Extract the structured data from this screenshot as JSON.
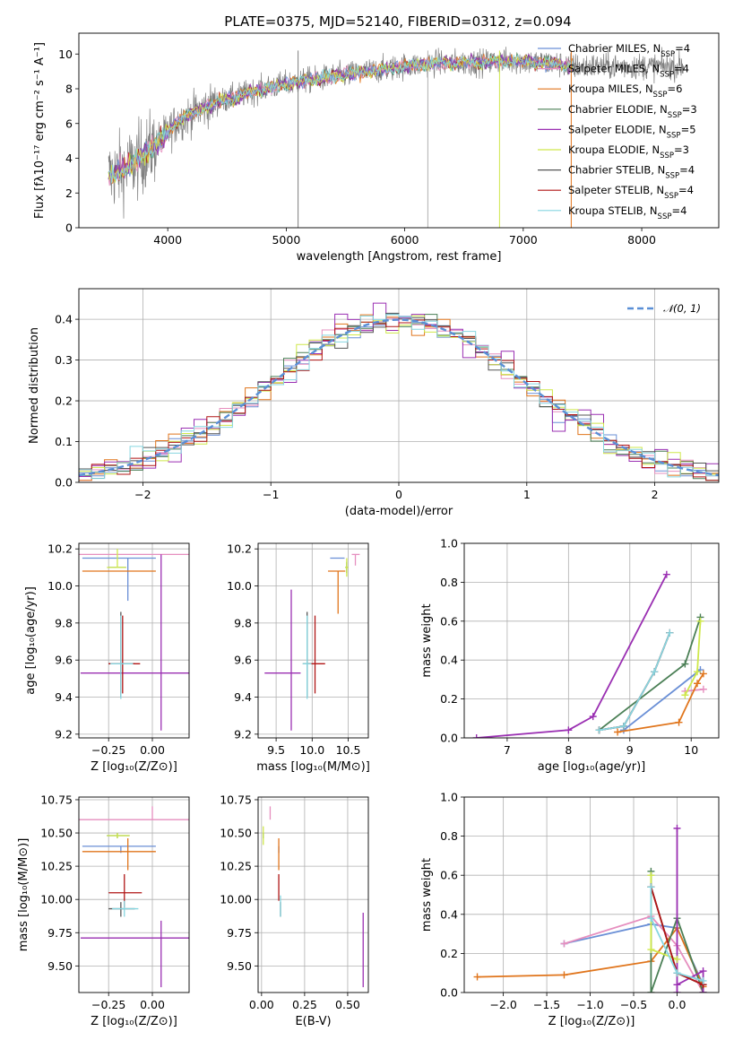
{
  "title": "PLATE=0375, MJD=52140, FIBERID=0312, z=0.094",
  "colors": {
    "Chabrier_MILES": "#6a8fd6",
    "Salpeter_MILES": "#e68fbf",
    "Kroupa_MILES": "#e0751c",
    "Chabrier_ELODIE": "#4a7f55",
    "Salpeter_ELODIE": "#9a2fb2",
    "Kroupa_ELODIE": "#cfe84b",
    "Chabrier_STELIB": "#555555",
    "Salpeter_STELIB": "#b01515",
    "Kroupa_STELIB": "#86d6e0",
    "data": "#7f7f7f",
    "gauss": "#5a8fd6"
  },
  "chart_data": [
    {
      "id": "spectrum",
      "type": "line",
      "xlabel": "wavelength [Angstrom, rest frame]",
      "ylabel": "Flux [fλ10⁻¹⁷ erg cm⁻² s⁻¹ A⁻¹]",
      "xlim": [
        3250,
        8650
      ],
      "ylim": [
        0,
        11.2
      ],
      "xticks": [
        4000,
        5000,
        6000,
        7000,
        8000
      ],
      "yticks": [
        0,
        2,
        4,
        6,
        8,
        10
      ],
      "legend_position": "upper-right",
      "legend": [
        {
          "key": "Chabrier_MILES",
          "label": "Chabrier MILES, N",
          "sub": "SSP",
          "tail": "=4"
        },
        {
          "key": "Salpeter_MILES",
          "label": "Salpeter MILES, N",
          "sub": "SSP",
          "tail": "=4"
        },
        {
          "key": "Kroupa_MILES",
          "label": "Kroupa MILES, N",
          "sub": "SSP",
          "tail": "=6"
        },
        {
          "key": "Chabrier_ELODIE",
          "label": "Chabrier ELODIE, N",
          "sub": "SSP",
          "tail": "=3"
        },
        {
          "key": "Salpeter_ELODIE",
          "label": "Salpeter ELODIE, N",
          "sub": "SSP",
          "tail": "=5"
        },
        {
          "key": "Kroupa_ELODIE",
          "label": "Kroupa ELODIE, N",
          "sub": "SSP",
          "tail": "=3"
        },
        {
          "key": "Chabrier_STELIB",
          "label": "Chabrier STELIB, N",
          "sub": "SSP",
          "tail": "=4"
        },
        {
          "key": "Salpeter_STELIB",
          "label": "Salpeter STELIB, N",
          "sub": "SSP",
          "tail": "=4"
        },
        {
          "key": "Kroupa_STELIB",
          "label": "Kroupa STELIB, N",
          "sub": "SSP",
          "tail": "=4"
        }
      ],
      "continuum": {
        "x": [
          3500,
          3700,
          3900,
          4100,
          4300,
          4500,
          4800,
          5100,
          5400,
          5700,
          6000,
          6300,
          6600,
          6900,
          7200,
          7420
        ],
        "y": [
          3.0,
          3.6,
          4.8,
          6.2,
          6.9,
          7.4,
          8.0,
          8.4,
          8.7,
          9.0,
          9.3,
          9.5,
          9.5,
          9.6,
          9.5,
          9.3
        ]
      },
      "data_extent": [
        3500,
        8360
      ]
    },
    {
      "id": "residuals",
      "type": "histogram",
      "xlabel": "(data-model)/error",
      "ylabel": "Normed distribution",
      "xlim": [
        -2.5,
        2.5
      ],
      "ylim": [
        0,
        0.475
      ],
      "xticks": [
        -2,
        -1,
        0,
        1,
        2
      ],
      "yticks": [
        0.0,
        0.1,
        0.2,
        0.3,
        0.4
      ],
      "bin_width": 0.1,
      "gauss_label": "𝒩(0, 1)",
      "legend_position": "upper-right"
    },
    {
      "id": "age_vs_Z",
      "type": "errorbar",
      "xlabel": "Z [log₁₀(Z/Z⊙)]",
      "ylabel": "age  [log₁₀(age/yr)]",
      "xlim": [
        -0.42,
        0.21
      ],
      "ylim": [
        9.18,
        10.23
      ],
      "xticks": [
        -0.25,
        0.0
      ],
      "yticks": [
        9.2,
        9.4,
        9.6,
        9.8,
        10.0,
        10.2
      ],
      "points": [
        {
          "key": "Chabrier_MILES",
          "x": -0.14,
          "xerr": [
            0.26,
            0.16
          ],
          "y": 10.15,
          "yerr": [
            0.23,
            0.0
          ]
        },
        {
          "key": "Salpeter_MILES",
          "x": 0.0,
          "xerr": [
            0.42,
            0.21
          ],
          "y": 10.17,
          "yerr": [
            0.0,
            0.0
          ]
        },
        {
          "key": "Kroupa_MILES",
          "x": -0.14,
          "xerr": [
            0.26,
            0.16
          ],
          "y": 10.08,
          "yerr": [
            0.0,
            0.0
          ]
        },
        {
          "key": "Chabrier_ELODIE",
          "x": -0.2,
          "xerr": [
            0.05,
            0.05
          ],
          "y": 10.1,
          "yerr": [
            0.0,
            0.0
          ]
        },
        {
          "key": "Salpeter_ELODIE",
          "x": 0.05,
          "xerr": [
            0.46,
            0.17
          ],
          "y": 9.53,
          "yerr": [
            0.31,
            0.64
          ]
        },
        {
          "key": "Kroupa_ELODIE",
          "x": -0.2,
          "xerr": [
            0.06,
            0.05
          ],
          "y": 10.1,
          "yerr": [
            0.0,
            0.1
          ]
        },
        {
          "key": "Chabrier_STELIB",
          "x": -0.18,
          "xerr": [
            0.07,
            0.08
          ],
          "y": 9.58,
          "yerr": [
            0.18,
            0.28
          ]
        },
        {
          "key": "Salpeter_STELIB",
          "x": -0.17,
          "xerr": [
            0.08,
            0.1
          ],
          "y": 9.58,
          "yerr": [
            0.16,
            0.26
          ]
        },
        {
          "key": "Kroupa_STELIB",
          "x": -0.18,
          "xerr": [
            0.06,
            0.07
          ],
          "y": 9.58,
          "yerr": [
            0.19,
            0.26
          ]
        }
      ]
    },
    {
      "id": "age_vs_mass",
      "type": "errorbar",
      "xlabel": "mass [log₁₀(M/M⊙)]",
      "ylabel": "",
      "xlim": [
        9.25,
        10.78
      ],
      "ylim": [
        9.18,
        10.23
      ],
      "xticks": [
        9.5,
        10.0,
        10.5
      ],
      "yticks": [
        9.2,
        9.4,
        9.6,
        9.8,
        10.0,
        10.2
      ],
      "points": [
        {
          "key": "Chabrier_MILES",
          "x": 10.4,
          "xerr": [
            0.15,
            0.05
          ],
          "y": 10.15,
          "yerr": [
            0.0,
            0.0
          ]
        },
        {
          "key": "Salpeter_MILES",
          "x": 10.6,
          "xerr": [
            0.05,
            0.06
          ],
          "y": 10.17,
          "yerr": [
            0.06,
            0.0
          ]
        },
        {
          "key": "Kroupa_MILES",
          "x": 10.36,
          "xerr": [
            0.14,
            0.1
          ],
          "y": 10.08,
          "yerr": [
            0.23,
            0.0
          ]
        },
        {
          "key": "Chabrier_ELODIE",
          "x": 10.48,
          "xerr": [
            0.02,
            0.02
          ],
          "y": 10.1,
          "yerr": [
            0.03,
            0.03
          ]
        },
        {
          "key": "Salpeter_ELODIE",
          "x": 9.71,
          "xerr": [
            0.37,
            0.13
          ],
          "y": 9.53,
          "yerr": [
            0.31,
            0.45
          ]
        },
        {
          "key": "Kroupa_ELODIE",
          "x": 10.48,
          "xerr": [
            0.02,
            0.02
          ],
          "y": 10.1,
          "yerr": [
            0.05,
            0.05
          ]
        },
        {
          "key": "Chabrier_STELIB",
          "x": 9.93,
          "xerr": [
            0.06,
            0.05
          ],
          "y": 9.58,
          "yerr": [
            0.18,
            0.28
          ]
        },
        {
          "key": "Salpeter_STELIB",
          "x": 10.04,
          "xerr": [
            0.1,
            0.14
          ],
          "y": 9.58,
          "yerr": [
            0.16,
            0.26
          ]
        },
        {
          "key": "Kroupa_STELIB",
          "x": 9.93,
          "xerr": [
            0.06,
            0.06
          ],
          "y": 9.58,
          "yerr": [
            0.19,
            0.26
          ]
        }
      ]
    },
    {
      "id": "weight_vs_age",
      "type": "line",
      "xlabel": "age  [log₁₀(age/yr)]",
      "ylabel": "mass weight",
      "xlim": [
        6.3,
        10.45
      ],
      "ylim": [
        0,
        1.0
      ],
      "xticks": [
        7,
        8,
        9,
        10
      ],
      "yticks": [
        0.0,
        0.2,
        0.4,
        0.6,
        0.8,
        1.0
      ],
      "series": [
        {
          "key": "Chabrier_MILES",
          "x": [
            8.9,
            10.15
          ],
          "y": [
            0.04,
            0.35
          ]
        },
        {
          "key": "Salpeter_MILES",
          "x": [
            9.9,
            10.2
          ],
          "y": [
            0.24,
            0.25
          ]
        },
        {
          "key": "Kroupa_MILES",
          "x": [
            8.8,
            9.8,
            10.1,
            10.2
          ],
          "y": [
            0.03,
            0.08,
            0.28,
            0.33
          ]
        },
        {
          "key": "Chabrier_ELODIE",
          "x": [
            8.5,
            9.9,
            10.15
          ],
          "y": [
            0.04,
            0.38,
            0.62
          ]
        },
        {
          "key": "Salpeter_ELODIE",
          "x": [
            6.5,
            8.0,
            8.4,
            9.6
          ],
          "y": [
            0.0,
            0.04,
            0.11,
            0.84
          ]
        },
        {
          "key": "Kroupa_ELODIE",
          "x": [
            9.9,
            10.1,
            10.15
          ],
          "y": [
            0.22,
            0.34,
            0.6
          ]
        },
        {
          "key": "Chabrier_STELIB",
          "x": [
            8.5,
            8.9,
            9.4,
            9.65
          ],
          "y": [
            0.04,
            0.06,
            0.34,
            0.54
          ]
        },
        {
          "key": "Salpeter_STELIB",
          "x": [
            8.5,
            8.9,
            9.4,
            9.65
          ],
          "y": [
            0.04,
            0.06,
            0.34,
            0.54
          ]
        },
        {
          "key": "Kroupa_STELIB",
          "x": [
            8.5,
            8.9,
            9.4,
            9.65
          ],
          "y": [
            0.04,
            0.06,
            0.34,
            0.54
          ]
        }
      ]
    },
    {
      "id": "mass_vs_Z",
      "type": "errorbar",
      "xlabel": "Z [log₁₀(Z/Z⊙)]",
      "ylabel": "mass [log₁₀(M/M⊙)]",
      "xlim": [
        -0.42,
        0.21
      ],
      "ylim": [
        9.3,
        10.77
      ],
      "xticks": [
        -0.25,
        0.0
      ],
      "yticks": [
        9.5,
        9.75,
        10.0,
        10.25,
        10.5,
        10.75
      ],
      "points": [
        {
          "key": "Chabrier_MILES",
          "x": -0.18,
          "xerr": [
            0.22,
            0.2
          ],
          "y": 10.4,
          "yerr": [
            0.05,
            0.0
          ]
        },
        {
          "key": "Salpeter_MILES",
          "x": 0.0,
          "xerr": [
            0.42,
            0.21
          ],
          "y": 10.6,
          "yerr": [
            0.0,
            0.1
          ]
        },
        {
          "key": "Kroupa_MILES",
          "x": -0.14,
          "xerr": [
            0.26,
            0.16
          ],
          "y": 10.36,
          "yerr": [
            0.14,
            0.1
          ]
        },
        {
          "key": "Chabrier_ELODIE",
          "x": -0.2,
          "xerr": [
            0.06,
            0.07
          ],
          "y": 10.48,
          "yerr": [
            0.02,
            0.02
          ]
        },
        {
          "key": "Salpeter_ELODIE",
          "x": 0.05,
          "xerr": [
            0.46,
            0.17
          ],
          "y": 9.71,
          "yerr": [
            0.37,
            0.13
          ]
        },
        {
          "key": "Kroupa_ELODIE",
          "x": -0.2,
          "xerr": [
            0.06,
            0.07
          ],
          "y": 10.48,
          "yerr": [
            0.02,
            0.02
          ]
        },
        {
          "key": "Chabrier_STELIB",
          "x": -0.18,
          "xerr": [
            0.07,
            0.08
          ],
          "y": 9.93,
          "yerr": [
            0.06,
            0.05
          ]
        },
        {
          "key": "Salpeter_STELIB",
          "x": -0.16,
          "xerr": [
            0.09,
            0.1
          ],
          "y": 10.05,
          "yerr": [
            0.11,
            0.14
          ]
        },
        {
          "key": "Kroupa_STELIB",
          "x": -0.16,
          "xerr": [
            0.07,
            0.08
          ],
          "y": 9.93,
          "yerr": [
            0.06,
            0.06
          ]
        }
      ]
    },
    {
      "id": "mass_vs_EBV",
      "type": "errorbar",
      "xlabel": "E(B-V)",
      "ylabel": "",
      "xlim": [
        -0.02,
        0.62
      ],
      "ylim": [
        9.3,
        10.77
      ],
      "xticks": [
        0.0,
        0.25,
        0.5
      ],
      "yticks": [
        9.5,
        9.75,
        10.0,
        10.25,
        10.5,
        10.75
      ],
      "points": [
        {
          "key": "Chabrier_MILES",
          "x": 0.1,
          "xerr": [
            0.0,
            0.0
          ],
          "y": 10.4,
          "yerr": [
            0.05,
            0.0
          ]
        },
        {
          "key": "Salpeter_MILES",
          "x": 0.05,
          "xerr": [
            0.0,
            0.0
          ],
          "y": 10.6,
          "yerr": [
            0.0,
            0.1
          ]
        },
        {
          "key": "Kroupa_MILES",
          "x": 0.1,
          "xerr": [
            0.0,
            0.0
          ],
          "y": 10.36,
          "yerr": [
            0.14,
            0.1
          ]
        },
        {
          "key": "Chabrier_ELODIE",
          "x": 0.01,
          "xerr": [
            0.0,
            0.0
          ],
          "y": 10.48,
          "yerr": [
            0.02,
            0.02
          ]
        },
        {
          "key": "Salpeter_ELODIE",
          "x": 0.59,
          "xerr": [
            0.0,
            0.0
          ],
          "y": 9.71,
          "yerr": [
            0.37,
            0.19
          ]
        },
        {
          "key": "Kroupa_ELODIE",
          "x": 0.01,
          "xerr": [
            0.0,
            0.0
          ],
          "y": 10.48,
          "yerr": [
            0.07,
            0.07
          ]
        },
        {
          "key": "Chabrier_STELIB",
          "x": 0.11,
          "xerr": [
            0.0,
            0.0
          ],
          "y": 9.93,
          "yerr": [
            0.06,
            0.05
          ]
        },
        {
          "key": "Salpeter_STELIB",
          "x": 0.1,
          "xerr": [
            0.0,
            0.0
          ],
          "y": 10.05,
          "yerr": [
            0.06,
            0.14
          ]
        },
        {
          "key": "Kroupa_STELIB",
          "x": 0.11,
          "xerr": [
            0.0,
            0.0
          ],
          "y": 9.93,
          "yerr": [
            0.06,
            0.1
          ]
        }
      ]
    },
    {
      "id": "weight_vs_Z",
      "type": "line",
      "xlabel": "Z [log₁₀(Z/Z⊙)]",
      "ylabel": "mass weight",
      "xlim": [
        -2.45,
        0.48
      ],
      "ylim": [
        0,
        1.0
      ],
      "xticks": [
        -2.0,
        -1.5,
        -1.0,
        -0.5,
        0.0
      ],
      "yticks": [
        0.0,
        0.2,
        0.4,
        0.6,
        0.8,
        1.0
      ],
      "series": [
        {
          "key": "Chabrier_MILES",
          "x": [
            -1.3,
            -0.3,
            0.0,
            0.3
          ],
          "y": [
            0.25,
            0.35,
            0.33,
            0.04
          ]
        },
        {
          "key": "Salpeter_MILES",
          "x": [
            -1.3,
            -0.3,
            0.0,
            0.3
          ],
          "y": [
            0.25,
            0.39,
            0.24,
            0.0
          ]
        },
        {
          "key": "Kroupa_MILES",
          "x": [
            -2.3,
            -1.3,
            -0.3,
            0.0,
            0.3
          ],
          "y": [
            0.08,
            0.09,
            0.16,
            0.33,
            0.03
          ]
        },
        {
          "key": "Chabrier_ELODIE",
          "x": [
            -0.3,
            -0.3,
            0.0,
            0.3
          ],
          "y": [
            0.62,
            0.0,
            0.38,
            0.0
          ]
        },
        {
          "key": "Salpeter_ELODIE",
          "x": [
            0.0,
            0.0,
            0.0,
            0.3,
            0.3
          ],
          "y": [
            0.84,
            0.0,
            0.04,
            0.11,
            0.0
          ]
        },
        {
          "key": "Kroupa_ELODIE",
          "x": [
            -0.3,
            -0.3,
            0.0
          ],
          "y": [
            0.6,
            0.22,
            0.17
          ]
        },
        {
          "key": "Chabrier_STELIB",
          "x": [
            -0.3,
            0.0,
            0.3
          ],
          "y": [
            0.54,
            0.1,
            0.04
          ]
        },
        {
          "key": "Salpeter_STELIB",
          "x": [
            -0.3,
            0.0,
            0.3
          ],
          "y": [
            0.54,
            0.1,
            0.04
          ]
        },
        {
          "key": "Kroupa_STELIB",
          "x": [
            -0.3,
            -0.3,
            0.0,
            0.3
          ],
          "y": [
            0.54,
            0.38,
            0.1,
            0.06
          ]
        }
      ]
    }
  ]
}
